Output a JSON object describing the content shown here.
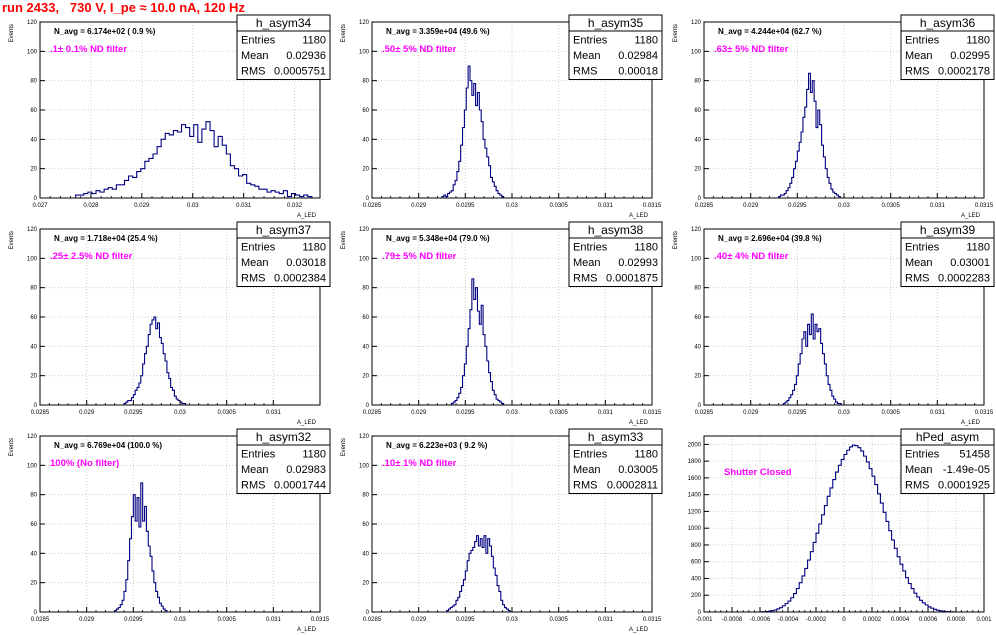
{
  "page_title": "run 2433,   730 V, I_pe ≈ 10.0 nA, 120 Hz",
  "colors": {
    "title": "#ff0000",
    "histogram": "#000080",
    "annotation": "#ff00ff",
    "grid": "#cccccc",
    "axis": "#000000",
    "background": "#ffffff"
  },
  "chart_data": [
    {
      "type": "bar",
      "name": "h_asym34",
      "title": "N_avg = 6.174e+02 ( 0.9 %)",
      "annotation": ".1± 0.1% ND filter",
      "xlabel": "A_LED",
      "ylabel": "Events",
      "xlim": [
        0.027,
        0.0325
      ],
      "ylim": [
        0,
        120
      ],
      "xticks": [
        "0.027",
        "0.028",
        "0.029",
        "0.03",
        "0.031",
        "0.032"
      ],
      "yticks": [
        "0",
        "20",
        "40",
        "60",
        "80",
        "100",
        "120"
      ],
      "grid": true,
      "stats": [
        [
          "Entries",
          "1180"
        ],
        [
          "Mean",
          "0.02936"
        ],
        [
          "RMS",
          "0.0005751"
        ]
      ],
      "bins": {
        "start": 0.0277,
        "width": 8e-05,
        "values": [
          2,
          2,
          3,
          4,
          3,
          5,
          4,
          6,
          7,
          6,
          9,
          9,
          12,
          15,
          14,
          18,
          20,
          25,
          27,
          30,
          35,
          40,
          44,
          43,
          46,
          45,
          50,
          48,
          42,
          50,
          38,
          47,
          52,
          46,
          35,
          42,
          36,
          30,
          22,
          20,
          15,
          16,
          10,
          9,
          8,
          6,
          6,
          4,
          5,
          4,
          3,
          5,
          1,
          3,
          2,
          1,
          2,
          1
        ]
      }
    },
    {
      "type": "bar",
      "name": "h_asym35",
      "title": "N_avg = 3.359e+04 (49.6 %)",
      "annotation": ".50± 5% ND filter",
      "xlabel": "A_LED",
      "ylabel": "Events",
      "xlim": [
        0.0285,
        0.0315
      ],
      "ylim": [
        0,
        120
      ],
      "xticks": [
        "0.0285",
        "0.029",
        "0.0295",
        "0.03",
        "0.0305",
        "0.031",
        "0.0315"
      ],
      "yticks": [
        "0",
        "20",
        "40",
        "60",
        "80",
        "100",
        "120"
      ],
      "grid": true,
      "stats": [
        [
          "Entries",
          "1180"
        ],
        [
          "Mean",
          "0.02984"
        ],
        [
          "RMS",
          "0.00018"
        ]
      ],
      "bins": {
        "start": 0.02925,
        "width": 2e-05,
        "values": [
          1,
          2,
          1,
          3,
          4,
          5,
          9,
          12,
          18,
          25,
          36,
          48,
          60,
          75,
          90,
          80,
          70,
          78,
          63,
          72,
          60,
          52,
          40,
          34,
          28,
          22,
          14,
          11,
          8,
          5,
          3,
          2,
          1
        ]
      }
    },
    {
      "type": "bar",
      "name": "h_asym36",
      "title": "N_avg = 4.244e+04 (62.7 %)",
      "annotation": ".63± 5% ND filter",
      "xlabel": "A_LED",
      "ylabel": "Events",
      "xlim": [
        0.0285,
        0.0315
      ],
      "ylim": [
        0,
        120
      ],
      "xticks": [
        "0.0285",
        "0.029",
        "0.0295",
        "0.03",
        "0.0305",
        "0.031",
        "0.0315"
      ],
      "yticks": [
        "0",
        "20",
        "40",
        "60",
        "80",
        "100",
        "120"
      ],
      "grid": true,
      "stats": [
        [
          "Entries",
          "1180"
        ],
        [
          "Mean",
          "0.02995"
        ],
        [
          "RMS",
          "0.0002178"
        ]
      ],
      "bins": {
        "start": 0.0293,
        "width": 2e-05,
        "values": [
          1,
          2,
          2,
          3,
          5,
          7,
          10,
          14,
          20,
          25,
          32,
          38,
          45,
          55,
          62,
          74,
          85,
          72,
          80,
          66,
          48,
          60,
          50,
          36,
          28,
          20,
          14,
          10,
          6,
          4,
          3,
          2,
          1
        ]
      }
    },
    {
      "type": "bar",
      "name": "h_asym37",
      "title": "N_avg = 1.718e+04 (25.4 %)",
      "annotation": ".25± 2.5% ND filter",
      "xlabel": "A_LED",
      "ylabel": "Events",
      "xlim": [
        0.0285,
        0.0315
      ],
      "ylim": [
        0,
        120
      ],
      "xticks": [
        "0.0285",
        "0.029",
        "0.0295",
        "0.03",
        "0.0305",
        "0.031"
      ],
      "yticks": [
        "0",
        "20",
        "40",
        "60",
        "80",
        "100",
        "120"
      ],
      "grid": true,
      "stats": [
        [
          "Entries",
          "1180"
        ],
        [
          "Mean",
          "0.03018"
        ],
        [
          "RMS",
          "0.0002384"
        ]
      ],
      "bins": {
        "start": 0.0294,
        "width": 2e-05,
        "values": [
          1,
          2,
          3,
          3,
          5,
          7,
          10,
          12,
          15,
          20,
          28,
          35,
          40,
          48,
          55,
          58,
          60,
          52,
          56,
          46,
          42,
          35,
          30,
          22,
          18,
          12,
          10,
          6,
          4,
          3,
          2,
          1,
          1
        ]
      }
    },
    {
      "type": "bar",
      "name": "h_asym38",
      "title": "N_avg = 5.348e+04 (79.0 %)",
      "annotation": ".79± 5% ND filter",
      "xlabel": "A_LED",
      "ylabel": "Events",
      "xlim": [
        0.0285,
        0.0315
      ],
      "ylim": [
        0,
        120
      ],
      "xticks": [
        "0.0285",
        "0.029",
        "0.0295",
        "0.03",
        "0.0305",
        "0.031",
        "0.0315"
      ],
      "yticks": [
        "0",
        "20",
        "40",
        "60",
        "80",
        "100",
        "120"
      ],
      "grid": true,
      "stats": [
        [
          "Entries",
          "1180"
        ],
        [
          "Mean",
          "0.02993"
        ],
        [
          "RMS",
          "0.0001875"
        ]
      ],
      "bins": {
        "start": 0.02935,
        "width": 2e-05,
        "values": [
          1,
          2,
          3,
          5,
          8,
          12,
          20,
          28,
          40,
          52,
          65,
          86,
          72,
          80,
          64,
          55,
          68,
          48,
          40,
          30,
          22,
          16,
          10,
          7,
          4,
          3,
          2,
          1
        ]
      }
    },
    {
      "type": "bar",
      "name": "h_asym39",
      "title": "N_avg = 2.696e+04 (39.8 %)",
      "annotation": ".40± 4% ND filter",
      "xlabel": "A_LED",
      "ylabel": "Events",
      "xlim": [
        0.0285,
        0.0315
      ],
      "ylim": [
        0,
        120
      ],
      "xticks": [
        "0.0285",
        "0.029",
        "0.0295",
        "0.03",
        "0.0305",
        "0.031",
        "0.0315"
      ],
      "yticks": [
        "0",
        "20",
        "40",
        "60",
        "80",
        "100",
        "120"
      ],
      "grid": true,
      "stats": [
        [
          "Entries",
          "1180"
        ],
        [
          "Mean",
          "0.03001"
        ],
        [
          "RMS",
          "0.0002283"
        ]
      ],
      "bins": {
        "start": 0.02935,
        "width": 2e-05,
        "values": [
          1,
          2,
          3,
          5,
          7,
          10,
          14,
          20,
          28,
          35,
          45,
          50,
          40,
          55,
          48,
          62,
          45,
          55,
          50,
          52,
          42,
          35,
          28,
          20,
          14,
          10,
          6,
          4,
          2,
          1,
          1
        ]
      }
    },
    {
      "type": "bar",
      "name": "h_asym32",
      "title": "N_avg = 6.769e+04 (100.0 %)",
      "annotation": "100% (No filter)",
      "xlabel": "A_LED",
      "ylabel": "Events",
      "xlim": [
        0.0285,
        0.0315
      ],
      "ylim": [
        0,
        120
      ],
      "xticks": [
        "0.0285",
        "0.029",
        "0.0295",
        "0.03",
        "0.0305",
        "0.031",
        "0.0315"
      ],
      "yticks": [
        "0",
        "20",
        "40",
        "60",
        "80",
        "100",
        "120"
      ],
      "grid": true,
      "stats": [
        [
          "Entries",
          "1180"
        ],
        [
          "Mean",
          "0.02983"
        ],
        [
          "RMS",
          "0.0001744"
        ]
      ],
      "bins": {
        "start": 0.0293,
        "width": 2e-05,
        "values": [
          1,
          2,
          3,
          5,
          8,
          14,
          22,
          35,
          50,
          65,
          80,
          62,
          78,
          58,
          88,
          62,
          72,
          55,
          45,
          38,
          28,
          20,
          14,
          10,
          6,
          4,
          2,
          1
        ]
      }
    },
    {
      "type": "bar",
      "name": "h_asym33",
      "title": "N_avg = 6.223e+03 ( 9.2 %)",
      "annotation": ".10± 1% ND filter",
      "xlabel": "A_LED",
      "ylabel": "Events",
      "xlim": [
        0.0285,
        0.0315
      ],
      "ylim": [
        0,
        120
      ],
      "xticks": [
        "0.0285",
        "0.029",
        "0.0295",
        "0.03",
        "0.0305",
        "0.031",
        "0.0315"
      ],
      "yticks": [
        "0",
        "20",
        "40",
        "60",
        "80",
        "100",
        "120"
      ],
      "grid": true,
      "stats": [
        [
          "Entries",
          "1180"
        ],
        [
          "Mean",
          "0.03005"
        ],
        [
          "RMS",
          "0.0002811"
        ]
      ],
      "bins": {
        "start": 0.0293,
        "width": 2e-05,
        "values": [
          1,
          2,
          3,
          4,
          5,
          8,
          10,
          14,
          18,
          22,
          28,
          35,
          40,
          42,
          44,
          48,
          52,
          45,
          50,
          44,
          52,
          40,
          50,
          45,
          38,
          30,
          25,
          18,
          14,
          8,
          5,
          3,
          2,
          1
        ]
      }
    },
    {
      "type": "bar",
      "name": "hPed_asym",
      "title": "",
      "annotation": "Shutter Closed",
      "xlabel": "",
      "ylabel": "",
      "xlim": [
        -0.001,
        0.001
      ],
      "ylim": [
        0,
        2100
      ],
      "xticks": [
        "-0.001",
        "-0.0008",
        "-0.0006",
        "-0.0004",
        "-0.0002",
        "0",
        "0.0002",
        "0.0004",
        "0.0006",
        "0.0008",
        "0.001"
      ],
      "yticks": [
        "0",
        "200",
        "400",
        "600",
        "800",
        "1000",
        "1200",
        "1400",
        "1600",
        "1800",
        "2000"
      ],
      "grid": true,
      "stats": [
        [
          "Entries",
          "51458"
        ],
        [
          "Mean",
          "-1.49e-05"
        ],
        [
          "RMS",
          "0.0001925"
        ]
      ],
      "bins": {
        "start": -0.0006,
        "width": 2e-05,
        "values": [
          2,
          4,
          6,
          10,
          16,
          24,
          36,
          52,
          74,
          100,
          130,
          170,
          220,
          280,
          350,
          430,
          520,
          620,
          720,
          830,
          940,
          1050,
          1160,
          1270,
          1380,
          1480,
          1580,
          1670,
          1750,
          1820,
          1880,
          1930,
          1970,
          1990,
          1985,
          1960,
          1920,
          1860,
          1790,
          1710,
          1620,
          1520,
          1410,
          1300,
          1190,
          1080,
          970,
          860,
          760,
          660,
          570,
          490,
          410,
          340,
          280,
          225,
          180,
          140,
          110,
          85,
          62,
          45,
          32,
          22,
          15,
          10,
          6,
          4,
          2,
          1
        ]
      }
    }
  ]
}
